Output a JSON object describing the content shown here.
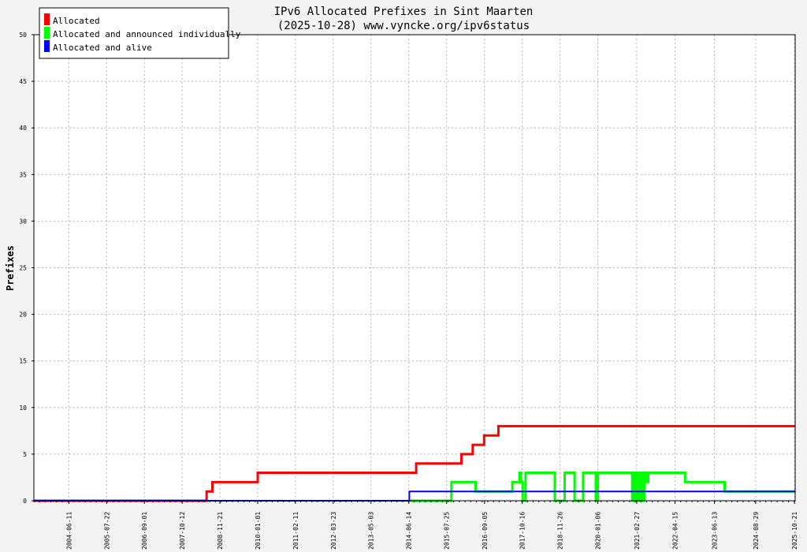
{
  "chart_data": {
    "type": "line",
    "title": "IPv6 Allocated Prefixes in Sint Maarten",
    "subtitle": "(2025-10-28) www.vyncke.org/ipv6status",
    "ylabel": "Prefixes",
    "xlabel": "",
    "ylim": [
      0,
      50
    ],
    "xlim": [
      "2003-06-01",
      "2025-10-28"
    ],
    "grid": true,
    "legend_position": "top-left",
    "y_ticks": [
      0,
      5,
      10,
      15,
      20,
      25,
      30,
      35,
      40,
      45,
      50
    ],
    "x_ticks": [
      "2004-06-11",
      "2005-07-22",
      "2006-09-01",
      "2007-10-12",
      "2008-11-21",
      "2010-01-01",
      "2011-02-11",
      "2012-03-23",
      "2013-05-03",
      "2014-06-14",
      "2015-07-25",
      "2016-09-05",
      "2017-10-16",
      "2018-11-26",
      "2020-01-06",
      "2021-02-27",
      "2022-04-15",
      "2023-06-13",
      "2024-08-29",
      "2025-10-21"
    ],
    "series": [
      {
        "name": "Allocated",
        "color": "#ff0000",
        "x": [
          "2003-06-01",
          "2008-07-01",
          "2008-07-01",
          "2008-09-01",
          "2008-09-01",
          "2010-01-01",
          "2010-01-01",
          "2014-09-01",
          "2014-09-01",
          "2016-01-01",
          "2016-01-01",
          "2016-05-01",
          "2016-05-01",
          "2016-09-01",
          "2016-09-01",
          "2017-02-01",
          "2017-02-01",
          "2025-10-28"
        ],
        "values": [
          0,
          0,
          1,
          1,
          2,
          2,
          3,
          3,
          4,
          4,
          5,
          5,
          6,
          6,
          7,
          7,
          8,
          8
        ]
      },
      {
        "name": "Allocated and announced individually",
        "color": "#00ff00",
        "x": [
          "2014-06-20",
          "2015-09-15",
          "2015-09-15",
          "2016-06-01",
          "2016-06-01",
          "2017-07-01",
          "2017-07-01",
          "2017-09-15",
          "2017-09-15",
          "2017-10-01",
          "2017-10-01",
          "2017-10-20",
          "2017-10-20",
          "2017-11-20",
          "2017-11-20",
          "2018-10-01",
          "2018-10-01",
          "2019-01-15",
          "2019-01-15",
          "2019-05-01",
          "2019-05-01",
          "2019-08-01",
          "2019-08-01",
          "2019-12-15",
          "2019-12-15",
          "2020-01-06",
          "2020-01-06",
          "2021-01-10",
          "2021-01-10",
          "2021-01-25",
          "2021-01-25",
          "2021-02-10",
          "2021-02-10",
          "2021-03-01",
          "2021-03-01",
          "2021-03-20",
          "2021-03-20",
          "2021-04-10",
          "2021-04-10",
          "2021-04-30",
          "2021-04-30",
          "2021-05-20",
          "2021-05-20",
          "2021-06-10",
          "2021-06-10",
          "2021-07-01",
          "2021-07-01",
          "2022-08-01",
          "2022-08-01",
          "2023-10-01",
          "2023-10-01",
          "2025-10-28"
        ],
        "values": [
          0,
          0,
          2,
          2,
          1,
          1,
          2,
          2,
          3,
          3,
          2,
          2,
          0,
          0,
          3,
          3,
          0,
          0,
          3,
          3,
          0,
          0,
          3,
          3,
          0,
          0,
          3,
          3,
          0,
          0,
          3,
          3,
          0,
          0,
          3,
          3,
          0,
          0,
          3,
          3,
          0,
          0,
          3,
          3,
          2,
          2,
          3,
          3,
          2,
          2,
          1,
          1
        ]
      },
      {
        "name": "Allocated and alive",
        "color": "#0000ff",
        "x": [
          "2003-06-01",
          "2014-06-20",
          "2014-06-20",
          "2025-10-28"
        ],
        "values": [
          0,
          0,
          1,
          1
        ]
      }
    ]
  }
}
